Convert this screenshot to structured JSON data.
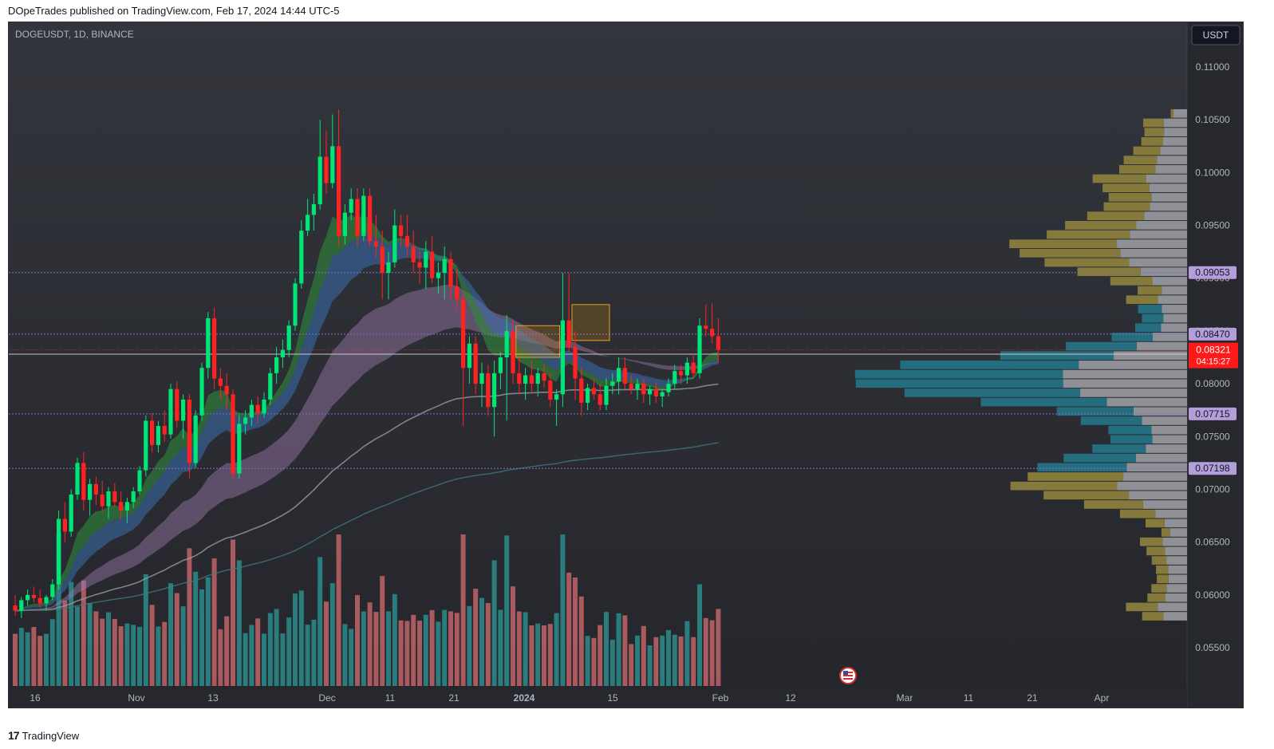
{
  "header": {
    "published": "DOpeTrades published on TradingView.com, Feb 17, 2024 14:44 UTC-5"
  },
  "footer": {
    "brand": "TradingView",
    "logo": "tradingview-logo-icon"
  },
  "chart": {
    "symbol": "DOGEUSDT, 1D, BINANCE",
    "currency": "USDT",
    "flag_icon": "us-flag-icon"
  },
  "colors": {
    "background": "#2b2d33",
    "up": "#00e676",
    "down": "#ff2222",
    "vol_up": "#2b7c7c",
    "vol_down": "#a85a5e",
    "level_line": "#7b6fd0",
    "label_bg": "#b39ddb",
    "price_label": "#ff1a1a"
  },
  "chart_data": {
    "type": "candlestick",
    "symbol": "DOGEUSDT",
    "interval": "1D",
    "exchange": "BINANCE",
    "y_axis": {
      "ticks": [
        "0.11000",
        "0.10500",
        "0.10000",
        "0.09500",
        "0.09000",
        "0.08500",
        "0.08000",
        "0.07500",
        "0.07000",
        "0.06500",
        "0.06000",
        "0.05500"
      ],
      "ylim": [
        0.0525,
        0.1135
      ]
    },
    "x_axis": {
      "ticks": [
        "16",
        "Nov",
        "13",
        "Dec",
        "11",
        "21",
        "2024",
        "15",
        "Feb",
        "12",
        "Mar",
        "11",
        "21",
        "Apr"
      ]
    },
    "levels": [
      "0.09053",
      "0.08470",
      "0.08280",
      "0.07715",
      "0.07198"
    ],
    "last_price": {
      "value": "0.08321",
      "countdown": "04:15:27"
    },
    "candles": [
      [
        0.059,
        0.06,
        0.058,
        0.0585
      ],
      [
        0.0585,
        0.0598,
        0.0578,
        0.0595
      ],
      [
        0.0595,
        0.0605,
        0.059,
        0.06
      ],
      [
        0.06,
        0.0608,
        0.0593,
        0.0597
      ],
      [
        0.0597,
        0.0605,
        0.0588,
        0.0592
      ],
      [
        0.0592,
        0.06,
        0.0585,
        0.0598
      ],
      [
        0.0598,
        0.0615,
        0.0595,
        0.061
      ],
      [
        0.061,
        0.068,
        0.0605,
        0.0672
      ],
      [
        0.0672,
        0.0688,
        0.065,
        0.066
      ],
      [
        0.066,
        0.07,
        0.0655,
        0.0695
      ],
      [
        0.0695,
        0.073,
        0.069,
        0.0725
      ],
      [
        0.0725,
        0.0735,
        0.068,
        0.069
      ],
      [
        0.069,
        0.071,
        0.0675,
        0.0705
      ],
      [
        0.0705,
        0.0712,
        0.0685,
        0.0695
      ],
      [
        0.0695,
        0.0708,
        0.0678,
        0.0684
      ],
      [
        0.0684,
        0.0702,
        0.0672,
        0.0698
      ],
      [
        0.0698,
        0.0706,
        0.0683,
        0.0688
      ],
      [
        0.0688,
        0.0698,
        0.0672,
        0.068
      ],
      [
        0.068,
        0.0692,
        0.0668,
        0.0688
      ],
      [
        0.0688,
        0.0702,
        0.0682,
        0.0698
      ],
      [
        0.0698,
        0.0722,
        0.0695,
        0.0718
      ],
      [
        0.0718,
        0.077,
        0.0712,
        0.0765
      ],
      [
        0.0765,
        0.0772,
        0.0735,
        0.0742
      ],
      [
        0.0742,
        0.0765,
        0.0735,
        0.076
      ],
      [
        0.076,
        0.0775,
        0.0745,
        0.0752
      ],
      [
        0.0752,
        0.08,
        0.0748,
        0.0795
      ],
      [
        0.0795,
        0.0802,
        0.0758,
        0.0765
      ],
      [
        0.0765,
        0.079,
        0.0748,
        0.0785
      ],
      [
        0.0785,
        0.079,
        0.071,
        0.0725
      ],
      [
        0.0725,
        0.0775,
        0.072,
        0.077
      ],
      [
        0.077,
        0.082,
        0.0765,
        0.0815
      ],
      [
        0.0815,
        0.0868,
        0.0805,
        0.0862
      ],
      [
        0.0862,
        0.0872,
        0.0795,
        0.0805
      ],
      [
        0.0805,
        0.0815,
        0.0785,
        0.0798
      ],
      [
        0.0798,
        0.081,
        0.0775,
        0.079
      ],
      [
        0.079,
        0.0795,
        0.071,
        0.0715
      ],
      [
        0.0715,
        0.077,
        0.071,
        0.0762
      ],
      [
        0.0762,
        0.0775,
        0.0752,
        0.0768
      ],
      [
        0.0768,
        0.0785,
        0.076,
        0.078
      ],
      [
        0.078,
        0.0788,
        0.0762,
        0.0772
      ],
      [
        0.0772,
        0.0792,
        0.0768,
        0.0785
      ],
      [
        0.0785,
        0.0815,
        0.078,
        0.081
      ],
      [
        0.081,
        0.0835,
        0.08,
        0.0825
      ],
      [
        0.0825,
        0.0842,
        0.0815,
        0.0832
      ],
      [
        0.0832,
        0.086,
        0.0825,
        0.0855
      ],
      [
        0.0855,
        0.09,
        0.085,
        0.0895
      ],
      [
        0.0895,
        0.0955,
        0.089,
        0.0945
      ],
      [
        0.0945,
        0.0975,
        0.094,
        0.096
      ],
      [
        0.096,
        0.098,
        0.0945,
        0.097
      ],
      [
        0.097,
        0.105,
        0.0965,
        0.1015
      ],
      [
        0.1015,
        0.104,
        0.098,
        0.099
      ],
      [
        0.099,
        0.1055,
        0.0985,
        0.1025
      ],
      [
        0.1025,
        0.106,
        0.093,
        0.094
      ],
      [
        0.094,
        0.097,
        0.0932,
        0.0962
      ],
      [
        0.0962,
        0.0985,
        0.0955,
        0.0975
      ],
      [
        0.0975,
        0.0985,
        0.093,
        0.094
      ],
      [
        0.094,
        0.0985,
        0.0935,
        0.0978
      ],
      [
        0.0978,
        0.0985,
        0.093,
        0.0935
      ],
      [
        0.0935,
        0.096,
        0.092,
        0.093
      ],
      [
        0.093,
        0.0945,
        0.088,
        0.0905
      ],
      [
        0.0905,
        0.0925,
        0.088,
        0.0915
      ],
      [
        0.0915,
        0.0965,
        0.091,
        0.095
      ],
      [
        0.095,
        0.096,
        0.093,
        0.094
      ],
      [
        0.094,
        0.096,
        0.092,
        0.093
      ],
      [
        0.093,
        0.0945,
        0.0905,
        0.0915
      ],
      [
        0.0915,
        0.0925,
        0.0895,
        0.091
      ],
      [
        0.091,
        0.0935,
        0.089,
        0.0925
      ],
      [
        0.0925,
        0.094,
        0.0895,
        0.09
      ],
      [
        0.09,
        0.0915,
        0.0885,
        0.0905
      ],
      [
        0.0905,
        0.093,
        0.088,
        0.0918
      ],
      [
        0.0918,
        0.0925,
        0.088,
        0.0892
      ],
      [
        0.0892,
        0.0908,
        0.087,
        0.088
      ],
      [
        0.088,
        0.0888,
        0.076,
        0.0815
      ],
      [
        0.0815,
        0.0845,
        0.08,
        0.0838
      ],
      [
        0.0838,
        0.0845,
        0.079,
        0.08
      ],
      [
        0.08,
        0.082,
        0.0778,
        0.081
      ],
      [
        0.081,
        0.0818,
        0.077,
        0.0778
      ],
      [
        0.0778,
        0.0822,
        0.075,
        0.081
      ],
      [
        0.081,
        0.083,
        0.0795,
        0.0825
      ],
      [
        0.0825,
        0.0865,
        0.0765,
        0.085
      ],
      [
        0.085,
        0.086,
        0.08,
        0.081
      ],
      [
        0.081,
        0.0825,
        0.079,
        0.08
      ],
      [
        0.08,
        0.0815,
        0.0785,
        0.0808
      ],
      [
        0.0808,
        0.0822,
        0.0792,
        0.08
      ],
      [
        0.08,
        0.0815,
        0.0788,
        0.081
      ],
      [
        0.081,
        0.0818,
        0.0796,
        0.0803
      ],
      [
        0.0803,
        0.081,
        0.0778,
        0.0785
      ],
      [
        0.0785,
        0.0795,
        0.076,
        0.079
      ],
      [
        0.079,
        0.0905,
        0.0778,
        0.086
      ],
      [
        0.086,
        0.0905,
        0.083,
        0.0835
      ],
      [
        0.0835,
        0.085,
        0.0785,
        0.0805
      ],
      [
        0.0805,
        0.0815,
        0.077,
        0.0782
      ],
      [
        0.0782,
        0.08,
        0.0775,
        0.0796
      ],
      [
        0.0796,
        0.0805,
        0.0785,
        0.079
      ],
      [
        0.079,
        0.08,
        0.0775,
        0.078
      ],
      [
        0.078,
        0.0805,
        0.0775,
        0.0798
      ],
      [
        0.0798,
        0.081,
        0.079,
        0.0802
      ],
      [
        0.0802,
        0.0825,
        0.079,
        0.0815
      ],
      [
        0.0815,
        0.0825,
        0.0795,
        0.08
      ],
      [
        0.08,
        0.0808,
        0.079,
        0.0795
      ],
      [
        0.0795,
        0.0805,
        0.0785,
        0.08
      ],
      [
        0.08,
        0.0805,
        0.0782,
        0.079
      ],
      [
        0.079,
        0.0798,
        0.078,
        0.0795
      ],
      [
        0.0795,
        0.0802,
        0.0782,
        0.0788
      ],
      [
        0.0788,
        0.0795,
        0.0778,
        0.0792
      ],
      [
        0.0792,
        0.0805,
        0.0788,
        0.08
      ],
      [
        0.08,
        0.0818,
        0.0795,
        0.0812
      ],
      [
        0.0812,
        0.0818,
        0.08,
        0.0808
      ],
      [
        0.0808,
        0.0825,
        0.08,
        0.082
      ],
      [
        0.082,
        0.0828,
        0.0805,
        0.081
      ],
      [
        0.081,
        0.0862,
        0.0805,
        0.0855
      ],
      [
        0.0855,
        0.0875,
        0.0845,
        0.0852
      ],
      [
        0.0852,
        0.0876,
        0.0838,
        0.0845
      ],
      [
        0.0845,
        0.0862,
        0.082,
        0.0832
      ]
    ],
    "volume_profile_prices": [
      0.0575,
      0.106
    ],
    "moving_average_bands": [
      "fast-ribbon",
      "slow-ribbon",
      "purple-band",
      "gray-ma",
      "teal-ma"
    ]
  }
}
